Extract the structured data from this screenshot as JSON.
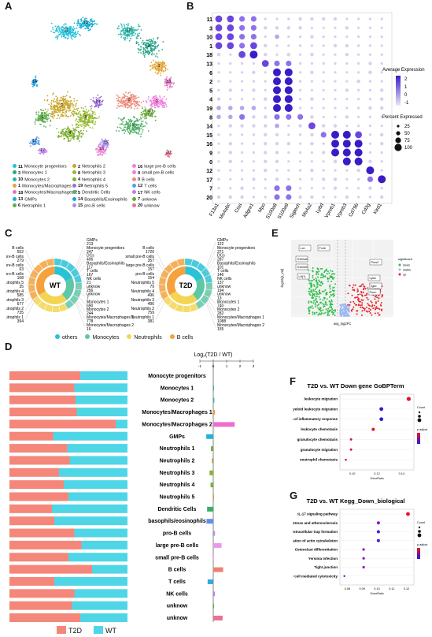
{
  "panels": {
    "A": "A",
    "B": "B",
    "C": "C",
    "D": "D",
    "E": "E",
    "F": "F",
    "G": "G"
  },
  "panelA": {
    "legend": [
      {
        "id": "11",
        "label": "Monocyte progenitors",
        "color": "#25c0d8"
      },
      {
        "id": "2",
        "label": "Netrophils 2",
        "color": "#c9a62c"
      },
      {
        "id": "16",
        "label": "large pre-B cells",
        "color": "#ee82d6"
      },
      {
        "id": "3",
        "label": "Monocytes 1",
        "color": "#2aa58a"
      },
      {
        "id": "8",
        "label": "Netrophils 3",
        "color": "#96b832"
      },
      {
        "id": "9",
        "label": "small pre-B cells",
        "color": "#f27ae0"
      },
      {
        "id": "10",
        "label": "Monocytes 2",
        "color": "#27b5a8"
      },
      {
        "id": "4",
        "label": "Netrophils 4",
        "color": "#7fb033"
      },
      {
        "id": "0",
        "label": "B cells",
        "color": "#ee8a7a"
      },
      {
        "id": "1",
        "label": "Monocytes/Macrophages 1",
        "color": "#e3a53a"
      },
      {
        "id": "19",
        "label": "Netrophils 5",
        "color": "#9c6fd8"
      },
      {
        "id": "12",
        "label": "T cells",
        "color": "#4f9ef0"
      },
      {
        "id": "18",
        "label": "Monocytes/Macrophages 2",
        "color": "#e176c2"
      },
      {
        "id": "5",
        "label": "Dendritic Cells",
        "color": "#52b06b"
      },
      {
        "id": "17",
        "label": "NK cells",
        "color": "#c07bf2"
      },
      {
        "id": "13",
        "label": "GMPs",
        "color": "#1aaed0"
      },
      {
        "id": "14",
        "label": "Basophils/Eosinophils",
        "color": "#1e9ee6"
      },
      {
        "id": "7",
        "label": "unknow",
        "color": "#6aa83a"
      },
      {
        "id": "6",
        "label": "Netrophils 1",
        "color": "#5fae4f"
      },
      {
        "id": "15",
        "label": "pro-B cells",
        "color": "#a98cf0"
      },
      {
        "id": "20",
        "label": "unknow",
        "color": "#e9708e"
      }
    ]
  },
  "panelB": {
    "rows": [
      "11",
      "3",
      "10",
      "1",
      "18",
      "13",
      "6",
      "2",
      "5",
      "4",
      "19",
      "8",
      "14",
      "15",
      "16",
      "9",
      "0",
      "12",
      "17",
      "7",
      "20"
    ],
    "genes": [
      "F13a1",
      "Ms4a6c",
      "Ctss",
      "Adgre1",
      "Mpo",
      "S100a8",
      "S100a9",
      "Siglech",
      "Ms4a2",
      "Ly6d",
      "Vpreb1",
      "Vpreb3",
      "Cd79b",
      "Cd3g",
      "Klrd1"
    ],
    "legend": {
      "avg_title": "Average Expression",
      "avg_ticks": [
        "2",
        "1",
        "0",
        "-1"
      ],
      "pct_title": "Percent Expressed",
      "pct_ticks": [
        "25",
        "50",
        "75",
        "100"
      ]
    }
  },
  "panelC": {
    "wt": {
      "center": "WT",
      "left": [
        {
          "label": "B cells",
          "value": "552"
        },
        {
          "label": "small pre-B cells",
          "value": "279"
        },
        {
          "label": "large pre-B cells",
          "value": "63"
        },
        {
          "label": "pro-B cells",
          "value": "108"
        },
        {
          "label": "Neutrophils 5",
          "value": "35"
        },
        {
          "label": "Neutrophils 4",
          "value": "585"
        },
        {
          "label": "Neutrophils 3",
          "value": "677"
        },
        {
          "label": "Neutrophils 2",
          "value": "735"
        },
        {
          "label": "Neutrophils 1",
          "value": "394"
        }
      ],
      "right": [
        {
          "label": "GMPs",
          "value": "213"
        },
        {
          "label": "Monocyte progenitors",
          "value": "247"
        },
        {
          "label": "DCs",
          "value": "406"
        },
        {
          "label": "Basophils/Eosinophils",
          "value": "117"
        },
        {
          "label": "T cells",
          "value": "167"
        },
        {
          "label": "NK cells",
          "value": "21"
        },
        {
          "label": "unknow",
          "value": "256"
        },
        {
          "label": "unknow",
          "value": "7"
        },
        {
          "label": "Monocytes 1",
          "value": "690"
        },
        {
          "label": "Monocytes 2",
          "value": "244"
        },
        {
          "label": "Monocytes/Macrophages 1",
          "value": "778"
        },
        {
          "label": "Monocytes/Macrophages 2",
          "value": "16"
        }
      ]
    },
    "t2d": {
      "center": "T2D",
      "left": [
        {
          "label": "B cells",
          "value": "1720"
        },
        {
          "label": "small pre-B cells",
          "value": "357"
        },
        {
          "label": "large pre-B cells",
          "value": "157"
        },
        {
          "label": "pro-B cells",
          "value": "154"
        },
        {
          "label": "Neutrophils 5",
          "value": "79"
        },
        {
          "label": "Neutrophils 4",
          "value": "496"
        },
        {
          "label": "Neutrophils 3",
          "value": "496"
        },
        {
          "label": "Neutrophils 2",
          "value": "759"
        },
        {
          "label": "Neutrophils 1",
          "value": "381"
        }
      ],
      "right": [
        {
          "label": "GMPs",
          "value": "122"
        },
        {
          "label": "Monocyte progenitors",
          "value": "371"
        },
        {
          "label": "DCs",
          "value": "287"
        },
        {
          "label": "Basophils/Eosinophils",
          "value": "101"
        },
        {
          "label": "T cells",
          "value": "146"
        },
        {
          "label": "NK cells",
          "value": "137"
        },
        {
          "label": "unknow",
          "value": "194"
        },
        {
          "label": "unknow",
          "value": "13"
        },
        {
          "label": "Monocytes 1",
          "value": "740"
        },
        {
          "label": "Monocytes 2",
          "value": "282"
        },
        {
          "label": "Monocytes/Macrophages 1",
          "value": "1088"
        },
        {
          "label": "Monocytes/Macrophages 2",
          "value": "155"
        }
      ]
    },
    "legend": [
      {
        "label": "others",
        "color": "#29c2d6"
      },
      {
        "label": "Monocytes",
        "color": "#5ec7a6"
      },
      {
        "label": "Neutrophils",
        "color": "#f3d552"
      },
      {
        "label": "B cells",
        "color": "#f5a23c"
      }
    ]
  },
  "panelD": {
    "title": "Log₂(T2D / WT)",
    "ticks": [
      "-1",
      "0",
      "1",
      "2",
      "3"
    ],
    "rows": [
      {
        "label": "Monocyte progenitors",
        "t2d": 0.6,
        "lfc": 0.0,
        "color": "#f1b3a9"
      },
      {
        "label": "Monocytes 1",
        "t2d": 0.55,
        "lfc": 0.02,
        "color": "#39b089"
      },
      {
        "label": "Monocytes 2",
        "t2d": 0.56,
        "lfc": 0.08,
        "color": "#25b5a4"
      },
      {
        "label": "Monocytes/Macrophages 1",
        "t2d": 0.57,
        "lfc": 0.12,
        "color": "#f09a3a"
      },
      {
        "label": "Monocytes/Macrophages 2",
        "t2d": 0.9,
        "lfc": 1.6,
        "color": "#f06dcf"
      },
      {
        "label": "GMPs",
        "t2d": 0.37,
        "lfc": -0.52,
        "color": "#21b3d6"
      },
      {
        "label": "Neutrophils 1",
        "t2d": 0.49,
        "lfc": -0.18,
        "color": "#68b34a"
      },
      {
        "label": "Neutrophils 2",
        "t2d": 0.51,
        "lfc": -0.1,
        "color": "#b49a2a"
      },
      {
        "label": "Neutrophils 3",
        "t2d": 0.42,
        "lfc": -0.28,
        "color": "#8db133"
      },
      {
        "label": "Neutrophils 4",
        "t2d": 0.46,
        "lfc": -0.2,
        "color": "#7cae34"
      },
      {
        "label": "Neutrophils 5",
        "t2d": 0.5,
        "lfc": 0.05,
        "color": "#d8a135"
      },
      {
        "label": "Dendritic Cells",
        "t2d": 0.36,
        "lfc": -0.46,
        "color": "#3cad62"
      },
      {
        "label": "basophils/eosinophils",
        "t2d": 0.38,
        "lfc": -0.5,
        "color": "#5f8ff0"
      },
      {
        "label": "pro-B cells",
        "t2d": 0.55,
        "lfc": 0.13,
        "color": "#b38cf0"
      },
      {
        "label": "large pre-B cells",
        "t2d": 0.61,
        "lfc": 0.62,
        "color": "#e69ae8"
      },
      {
        "label": "small pre-B cells",
        "t2d": 0.5,
        "lfc": -0.04,
        "color": "#f27ae0"
      },
      {
        "label": "B cells",
        "t2d": 0.7,
        "lfc": 0.74,
        "color": "#ef8070"
      },
      {
        "label": "T cells",
        "t2d": 0.38,
        "lfc": -0.42,
        "color": "#32a7e8"
      },
      {
        "label": "NK cells",
        "t2d": 0.55,
        "lfc": 0.12,
        "color": "#c07bf2"
      },
      {
        "label": "unknow",
        "t2d": 0.53,
        "lfc": 0.03,
        "color": "#6aa83a"
      },
      {
        "label": "unknow",
        "t2d": 0.6,
        "lfc": 0.7,
        "color": "#ee7090"
      }
    ],
    "legend": [
      {
        "label": "T2D",
        "color": "#f4877a"
      },
      {
        "label": "WT",
        "color": "#4fd6e6"
      }
    ]
  },
  "panelE": {
    "xlabel": "avg_log2FC",
    "ylabel": "-log10(p_val)",
    "legend_title": "significant",
    "legend": [
      {
        "label": "down",
        "color": "#2ec04a"
      },
      {
        "label": "stable",
        "color": "#9ab8f0"
      },
      {
        "label": "up",
        "color": "#e8242a"
      }
    ],
    "labels": [
      "Lcn",
      "Fcnb",
      "S100a8",
      "S100a9",
      "Ltf(?)",
      "Prss2",
      "Ly6a",
      "Igkc",
      "Pmm"
    ]
  },
  "panelF": {
    "title": "T2D vs. WT Down gene GoBPTerm",
    "terms": [
      "leukocyte migration",
      "myeloid leukocyte migration",
      "regulation of inflammatory response",
      "leukocyte chemotaxis",
      "granulocyte chemotaxis",
      "granulocyte migration",
      "neutrophil chemotaxis"
    ],
    "xlabel": "GeneRatio",
    "ticks": [
      "0.10",
      "0.12",
      "0.14"
    ],
    "legend_count": "Count",
    "legend_p": "p.adjust"
  },
  "panelG": {
    "title": "T2D vs. WT Kegg_Down_biological",
    "terms": [
      "IL-17 signaling pathway",
      "Fluid shear stress and atherosclerosis",
      "Neutrophil extracellular trap formation",
      "Regulation of actin cytoskeleton",
      "Osteoclast differentiation",
      "Yersinia infection",
      "Tight junction",
      "Natural killer cell mediated cytotoxicity"
    ],
    "xlabel": "GeneRatio",
    "ticks": [
      "0.08",
      "0.09",
      "0.10",
      "0.11",
      "0.12"
    ],
    "legend_count": "Count",
    "legend_p": "p.adjust"
  }
}
